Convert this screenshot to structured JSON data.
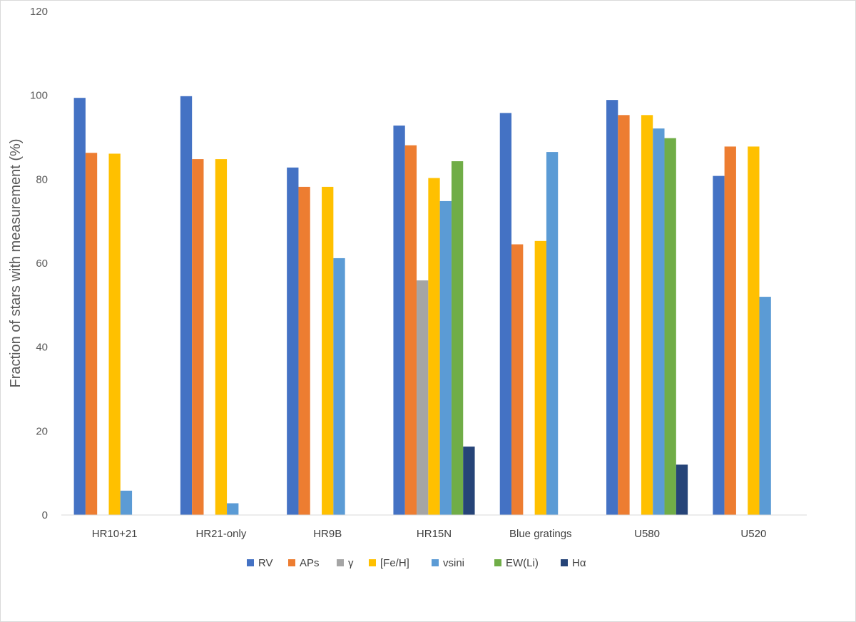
{
  "chart_data": {
    "type": "bar",
    "ylabel": "Fraction of stars with measurement  (%)",
    "ylim": [
      0,
      120
    ],
    "yticks": [
      0,
      20,
      40,
      60,
      80,
      100,
      120
    ],
    "grid": false,
    "legend": "bottom",
    "categories": [
      "HR10+21",
      "HR21-only",
      "HR9B",
      "HR15N",
      "Blue gratings",
      "U580",
      "U520"
    ],
    "series": [
      {
        "name": "RV",
        "color": "#4472c4",
        "values": [
          99.4,
          99.8,
          82.8,
          92.8,
          95.8,
          98.9,
          80.8
        ]
      },
      {
        "name": "APs",
        "color": "#ed7d31",
        "values": [
          86.3,
          84.8,
          78.2,
          88.1,
          64.5,
          95.3,
          87.8
        ]
      },
      {
        "name": "γ",
        "color": "#a5a5a5",
        "values": [
          0,
          0,
          0,
          55.9,
          0,
          0,
          0
        ]
      },
      {
        "name": "[Fe/H]",
        "color": "#ffc000",
        "values": [
          86.1,
          84.8,
          78.2,
          80.3,
          65.3,
          95.3,
          87.8
        ]
      },
      {
        "name": "vsini",
        "color": "#5b9bd5",
        "values": [
          5.8,
          2.8,
          61.2,
          74.8,
          86.5,
          92.1,
          52.0
        ]
      },
      {
        "name": "EW(Li)",
        "color": "#70ad47",
        "values": [
          0,
          0,
          0,
          84.3,
          0,
          89.8,
          0
        ]
      },
      {
        "name": "Hα",
        "color": "#264478",
        "values": [
          0,
          0,
          0,
          16.3,
          0,
          12.0,
          0
        ]
      }
    ]
  }
}
